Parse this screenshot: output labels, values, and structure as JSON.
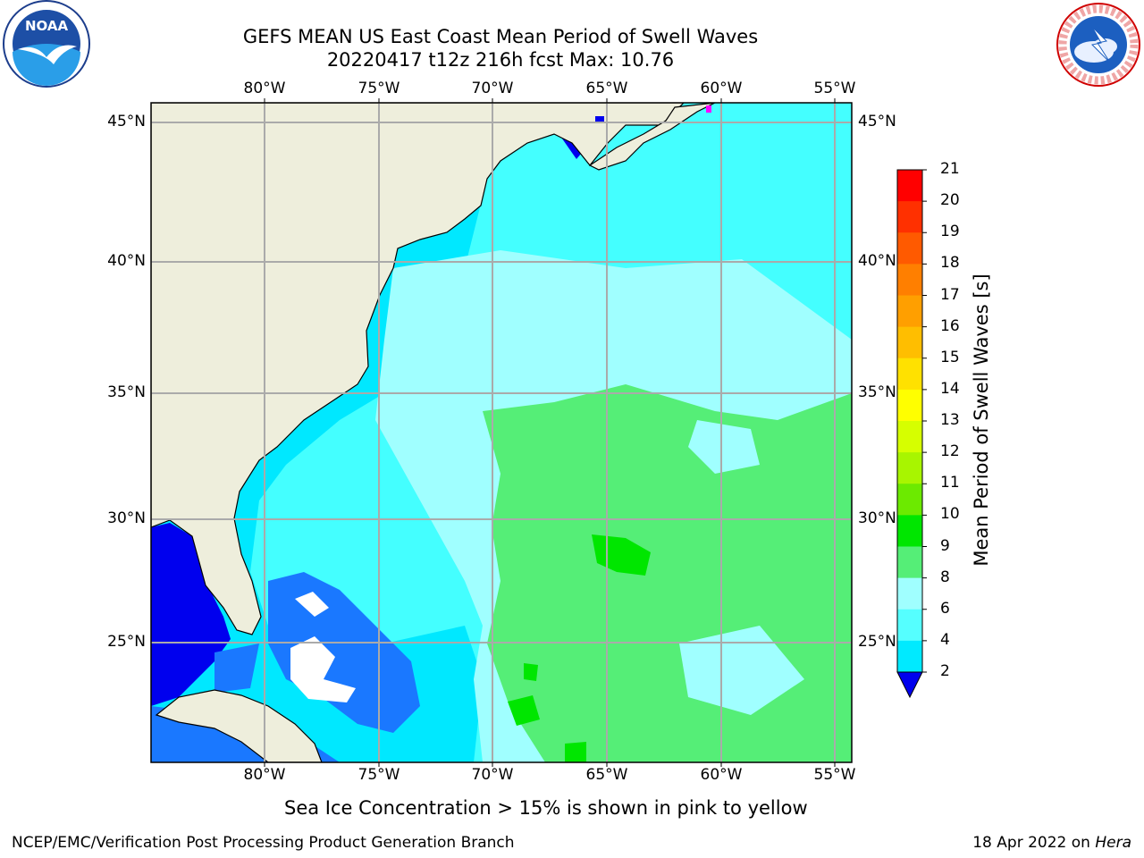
{
  "title_line1": "GEFS MEAN US East Coast Mean Period of Swell Waves",
  "title_line2": "20220417 t12z 216h fcst   Max: 10.76",
  "lon_labels": [
    "80°W",
    "75°W",
    "70°W",
    "65°W",
    "60°W",
    "55°W"
  ],
  "lat_labels": [
    "45°N",
    "40°N",
    "35°N",
    "30°N",
    "25°N"
  ],
  "colorbar": {
    "title": "Mean Period of Swell Waves [s]",
    "ticks": [
      "21",
      "20",
      "19",
      "18",
      "17",
      "16",
      "15",
      "14",
      "13",
      "12",
      "11",
      "10",
      "9",
      "8",
      "6",
      "4",
      "2"
    ],
    "colors": [
      "#ff0000",
      "#ff3000",
      "#ff5a00",
      "#ff7f00",
      "#ff9f00",
      "#ffbe00",
      "#ffe100",
      "#ffff00",
      "#d6ff00",
      "#a8f500",
      "#6cea00",
      "#00e600",
      "#55ee77",
      "#a0ffff",
      "#55ffff",
      "#00eaff",
      "#0080ff",
      "#0000ee"
    ]
  },
  "map_colors": {
    "land": "#eeeedc",
    "period_0_2": "#0000ee",
    "period_2_4": "#1a78ff",
    "period_4_6": "#00e8ff",
    "period_6_8": "#44ffff",
    "period_8_9": "#a0ffff",
    "period_9_10": "#55ee77",
    "period_10_11": "#00e600",
    "sea_ice": "#ff00ff",
    "grid": "#aaaaaa"
  },
  "footer": {
    "sea_ice_note": "Sea Ice Concentration > 15% is shown in pink to yellow",
    "credit": "NCEP/EMC/Verification Post Processing Product Generation Branch",
    "date_text": "18 Apr 2022 on ",
    "host": "Hera"
  },
  "logos": {
    "left": "NOAA",
    "right": "NATIONAL WEATHER SERVICE"
  }
}
